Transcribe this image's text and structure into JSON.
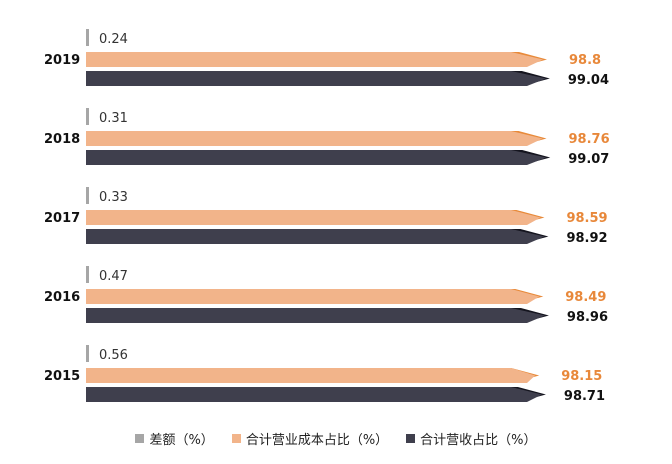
{
  "chart_data": {
    "type": "bar",
    "orientation": "horizontal",
    "categories": [
      "2019",
      "2018",
      "2017",
      "2016",
      "2015"
    ],
    "series": [
      {
        "name": "差额（%）",
        "values": [
          0.24,
          0.31,
          0.33,
          0.47,
          0.56
        ],
        "color": "#a6a6a6"
      },
      {
        "name": "合计营业成本占比（%）",
        "values": [
          98.8,
          98.76,
          98.59,
          98.49,
          98.15
        ],
        "color": "#f2b48a",
        "accent": "#e88a3a",
        "label_color": "#e8883a"
      },
      {
        "name": "合计营收占比（%）",
        "values": [
          99.04,
          99.07,
          98.92,
          98.96,
          98.71
        ],
        "color": "#3f3f4d",
        "accent": "#15151f",
        "label_color": "#111111"
      }
    ],
    "legend": "bottom-center",
    "grid": false
  }
}
